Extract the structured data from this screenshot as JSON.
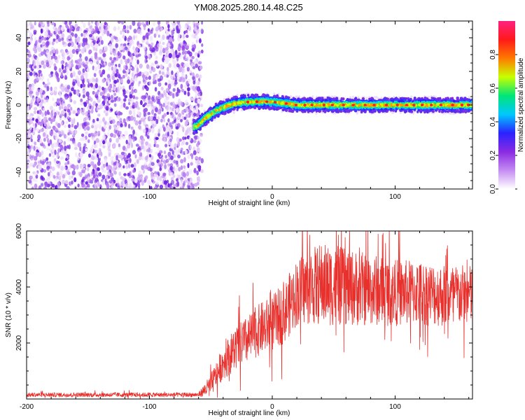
{
  "title": "YM08.2025.280.14.48.C25",
  "colors": {
    "snr_line": "#e8302c",
    "cluster": "#6a1fe0",
    "background": "#ffffff",
    "colorbar_stops": [
      "#ffffff",
      "#c58cf2",
      "#8a2be2",
      "#2a22ff",
      "#00c8ff",
      "#00e676",
      "#c8ff00",
      "#ff7a00",
      "#ff1a1a",
      "#ff2080"
    ]
  },
  "chart_data": [
    {
      "type": "heatmap",
      "name": "spectrogram",
      "xlabel": "Height of straight line (km)",
      "ylabel": "Frequency (Hz)",
      "xlim": [
        -200,
        163
      ],
      "ylim": [
        -50,
        50
      ],
      "xticks": [
        -200,
        -100,
        0,
        100
      ],
      "yticks": [
        -40,
        -20,
        0,
        20,
        40
      ],
      "noise_region_x": [
        -200,
        -57
      ],
      "trace": {
        "description_points_x": [
          -62,
          -55,
          -45,
          -35,
          -25,
          -15,
          -5,
          5,
          20,
          40,
          60,
          80,
          100,
          120,
          140,
          160
        ],
        "description_points_y": [
          -13,
          -8,
          -3,
          0,
          1.5,
          2,
          2,
          1.5,
          0,
          0,
          0,
          0,
          0,
          0,
          0,
          0
        ]
      },
      "colorbar": {
        "label": "Normalized spectral amplitude",
        "range": [
          0,
          1
        ],
        "ticks": [
          "0.0",
          "0.2",
          "0.4",
          "0.6",
          "0.8"
        ]
      }
    },
    {
      "type": "line",
      "name": "snr",
      "xlabel": "Height of straight line (km)",
      "ylabel": "SNR (10 * v/v)",
      "xlim": [
        -200,
        163
      ],
      "ylim": [
        0,
        6000
      ],
      "xticks": [
        -200,
        -100,
        0,
        100
      ],
      "yticks": [
        2000,
        4000,
        6000
      ],
      "envelope": {
        "x": [
          -200,
          -60,
          -50,
          -40,
          -30,
          -20,
          -10,
          0,
          10,
          20,
          30,
          40,
          60,
          80,
          100,
          120,
          140,
          163
        ],
        "y": [
          150,
          150,
          500,
          1300,
          1800,
          2100,
          2500,
          2700,
          3100,
          3800,
          4000,
          4100,
          4000,
          3900,
          3800,
          3800,
          3700,
          3700
        ]
      },
      "noise_amplitude": {
        "x": [
          -200,
          -60,
          -50,
          -30,
          0,
          20,
          40,
          60,
          100,
          163
        ],
        "y": [
          80,
          80,
          400,
          800,
          1000,
          1200,
          1500,
          1400,
          1200,
          1100
        ]
      }
    }
  ]
}
